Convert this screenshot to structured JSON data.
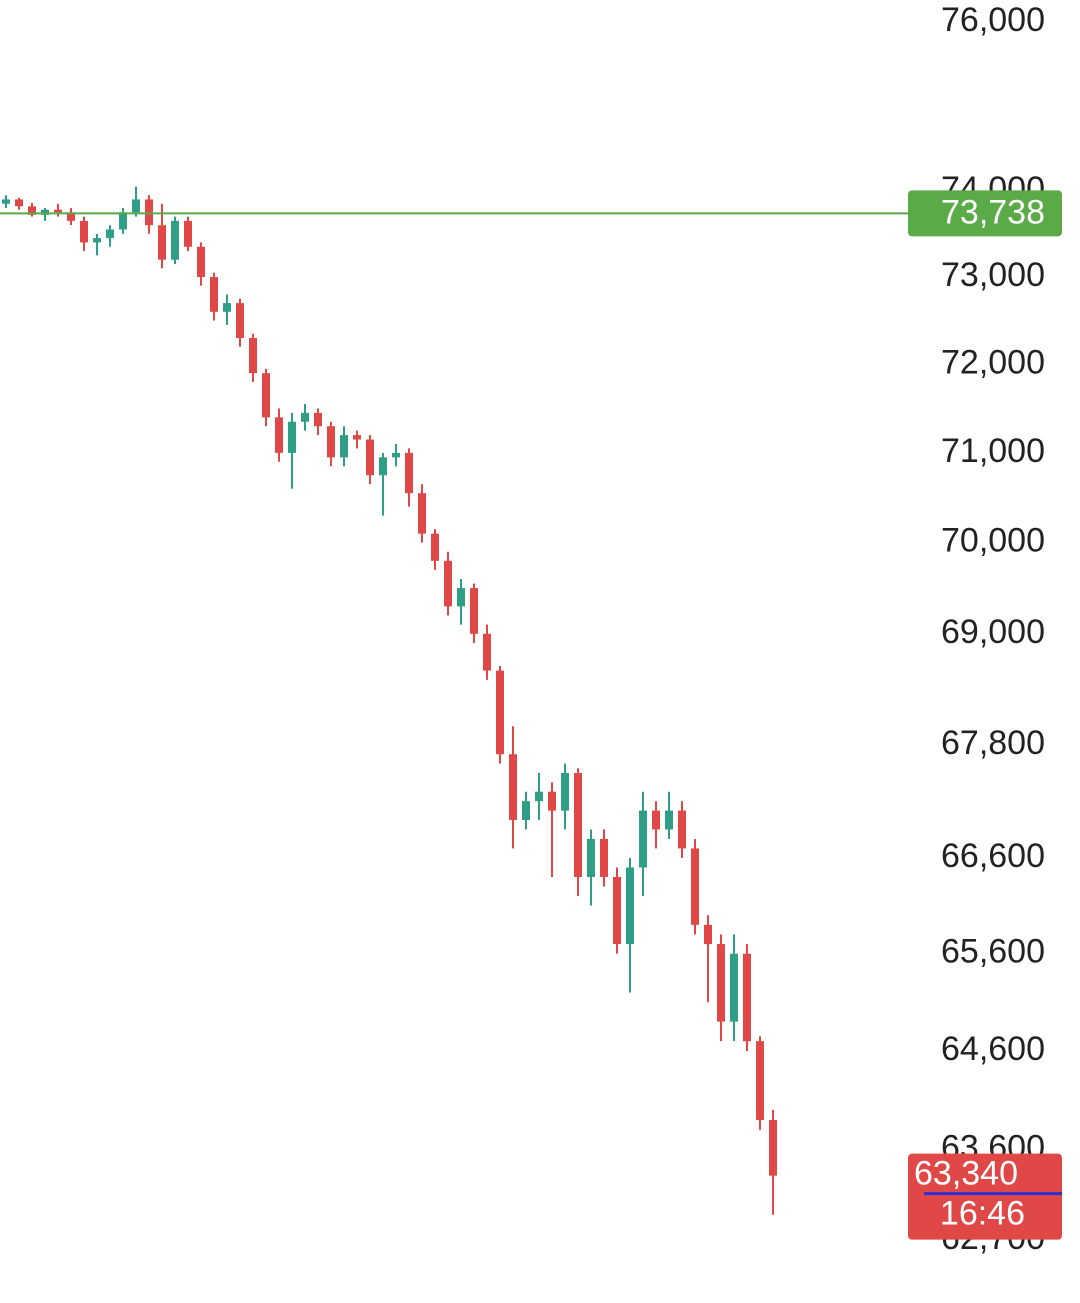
{
  "chart_data": {
    "type": "candlestick",
    "ylim": [
      62128,
      76265
    ],
    "log_scale": true,
    "yticks": [
      {
        "value": 76000,
        "label": "76,000"
      },
      {
        "value": 74000,
        "label": "74,000"
      },
      {
        "value": 73000,
        "label": "73,000"
      },
      {
        "value": 72000,
        "label": "72,000"
      },
      {
        "value": 71000,
        "label": "71,000"
      },
      {
        "value": 70000,
        "label": "70,000"
      },
      {
        "value": 69000,
        "label": "69,000"
      },
      {
        "value": 67800,
        "label": "67,800"
      },
      {
        "value": 66600,
        "label": "66,600"
      },
      {
        "value": 65600,
        "label": "65,600"
      },
      {
        "value": 64600,
        "label": "64,600"
      },
      {
        "value": 63600,
        "label": "63,600"
      },
      {
        "value": 62700,
        "label": "62,700"
      }
    ],
    "up_color": "#2f9e86",
    "down_color": "#e04848",
    "price_line": {
      "value": 73738,
      "label": "73,738",
      "color": "#5aaa47"
    },
    "last_price": {
      "value": 63340,
      "label": "63,340",
      "time": "16:46",
      "color": "#e04848"
    },
    "ohlc": [
      [
        73850,
        73950,
        73800,
        73900
      ],
      [
        73900,
        73920,
        73780,
        73820
      ],
      [
        73820,
        73860,
        73700,
        73720
      ],
      [
        73720,
        73800,
        73650,
        73780
      ],
      [
        73780,
        73850,
        73700,
        73750
      ],
      [
        73750,
        73800,
        73600,
        73650
      ],
      [
        73650,
        73700,
        73300,
        73400
      ],
      [
        73400,
        73500,
        73250,
        73450
      ],
      [
        73450,
        73600,
        73350,
        73550
      ],
      [
        73550,
        73800,
        73500,
        73750
      ],
      [
        73750,
        74050,
        73700,
        73900
      ],
      [
        73900,
        73950,
        73500,
        73600
      ],
      [
        73600,
        73850,
        73100,
        73200
      ],
      [
        73200,
        73700,
        73150,
        73650
      ],
      [
        73650,
        73700,
        73300,
        73350
      ],
      [
        73350,
        73400,
        72900,
        73000
      ],
      [
        73000,
        73050,
        72500,
        72600
      ],
      [
        72600,
        72800,
        72450,
        72700
      ],
      [
        72700,
        72750,
        72200,
        72300
      ],
      [
        72300,
        72350,
        71800,
        71900
      ],
      [
        71900,
        71950,
        71300,
        71400
      ],
      [
        71400,
        71500,
        70900,
        71000
      ],
      [
        71000,
        71450,
        70600,
        71350
      ],
      [
        71350,
        71550,
        71250,
        71450
      ],
      [
        71450,
        71500,
        71200,
        71300
      ],
      [
        71300,
        71350,
        70850,
        70950
      ],
      [
        70950,
        71300,
        70850,
        71200
      ],
      [
        71200,
        71250,
        71050,
        71150
      ],
      [
        71150,
        71200,
        70650,
        70750
      ],
      [
        70750,
        71000,
        70300,
        70950
      ],
      [
        70950,
        71100,
        70850,
        71000
      ],
      [
        71000,
        71050,
        70400,
        70550
      ],
      [
        70550,
        70650,
        70000,
        70100
      ],
      [
        70100,
        70150,
        69700,
        69800
      ],
      [
        69800,
        69900,
        69200,
        69300
      ],
      [
        69300,
        69600,
        69100,
        69500
      ],
      [
        69500,
        69550,
        68900,
        69000
      ],
      [
        69000,
        69100,
        68500,
        68600
      ],
      [
        68600,
        68650,
        67600,
        67700
      ],
      [
        67700,
        68000,
        66700,
        67000
      ],
      [
        67000,
        67300,
        66900,
        67200
      ],
      [
        67200,
        67500,
        67000,
        67300
      ],
      [
        67300,
        67400,
        66400,
        67100
      ],
      [
        67100,
        67600,
        66900,
        67500
      ],
      [
        67500,
        67550,
        66200,
        66400
      ],
      [
        66400,
        66900,
        66100,
        66800
      ],
      [
        66800,
        66900,
        66300,
        66400
      ],
      [
        66400,
        66500,
        65600,
        65700
      ],
      [
        65700,
        66600,
        65200,
        66500
      ],
      [
        66500,
        67300,
        66200,
        67100
      ],
      [
        67100,
        67200,
        66700,
        66900
      ],
      [
        66900,
        67300,
        66800,
        67100
      ],
      [
        67100,
        67200,
        66600,
        66700
      ],
      [
        66700,
        66800,
        65800,
        65900
      ],
      [
        65900,
        66000,
        65100,
        65700
      ],
      [
        65700,
        65800,
        64700,
        64900
      ],
      [
        64900,
        65800,
        64700,
        65600
      ],
      [
        65600,
        65700,
        64600,
        64700
      ],
      [
        64700,
        64750,
        63800,
        63900
      ],
      [
        63900,
        64000,
        62950,
        63340
      ]
    ]
  }
}
